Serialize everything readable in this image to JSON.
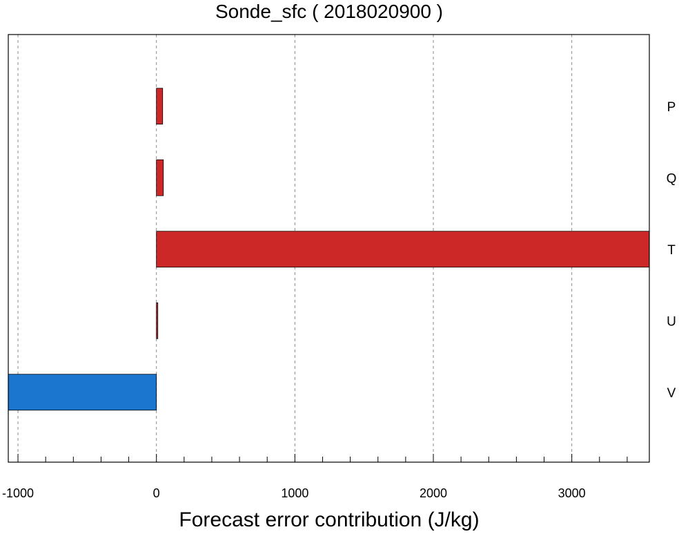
{
  "chart_data": {
    "type": "bar",
    "orientation": "horizontal",
    "title": "Sonde_sfc ( 2018020900 )",
    "xlabel": "Forecast error contribution (J/kg)",
    "ylabel": "",
    "categories": [
      "P",
      "Q",
      "T",
      "U",
      "V"
    ],
    "values": [
      45,
      50,
      3560,
      10,
      -1070
    ],
    "xlim": [
      -1070,
      3560
    ],
    "xticks": [
      -1000,
      0,
      1000,
      2000,
      3000
    ],
    "xtick_labels": [
      "-1000",
      "0",
      "1000",
      "2000",
      "3000"
    ],
    "minor_tick_step": 200,
    "grid": "vertical dashed at major ticks",
    "category_labels_side": "right",
    "colors": {
      "positive": "#cc2828",
      "negative": "#1a76cf",
      "grid": "#8a8a8a",
      "axis": "#000000"
    }
  }
}
